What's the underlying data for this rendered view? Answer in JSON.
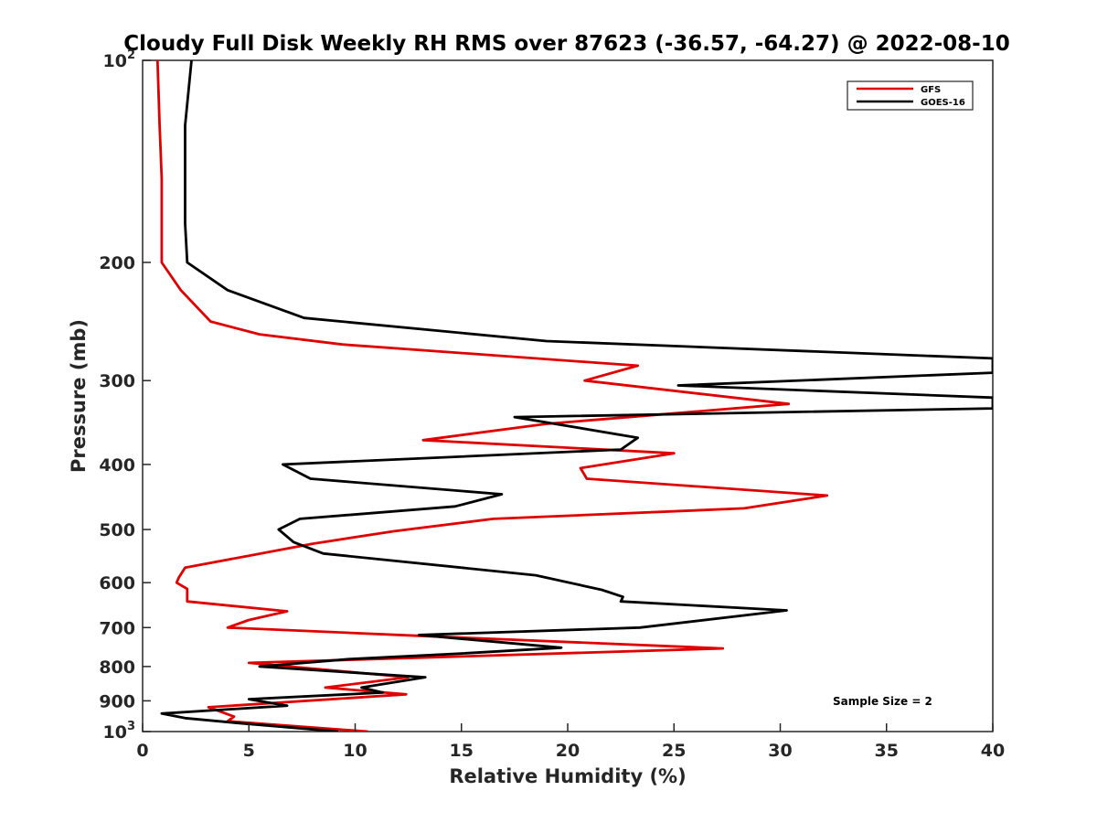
{
  "chart_data": {
    "type": "line",
    "title": "Cloudy Full Disk Weekly RH RMS over 87623 (-36.57, -64.27) @ 2022-08-10",
    "xlabel": "Relative Humidity (%)",
    "ylabel": "Pressure (mb)",
    "xlim": [
      0,
      40
    ],
    "ylim": [
      100,
      1000
    ],
    "yscale": "log",
    "y_reversed": true,
    "grid": false,
    "legend_position": "top-right",
    "xticks": [
      {
        "value": 0,
        "label": "0"
      },
      {
        "value": 5,
        "label": "5"
      },
      {
        "value": 10,
        "label": "10"
      },
      {
        "value": 15,
        "label": "15"
      },
      {
        "value": 20,
        "label": "20"
      },
      {
        "value": 25,
        "label": "25"
      },
      {
        "value": 30,
        "label": "30"
      },
      {
        "value": 35,
        "label": "35"
      },
      {
        "value": 40,
        "label": "40"
      }
    ],
    "yticks": [
      {
        "value": 100,
        "label": "10",
        "sup": "2"
      },
      {
        "value": 200,
        "label": "200",
        "sup": ""
      },
      {
        "value": 300,
        "label": "300",
        "sup": ""
      },
      {
        "value": 400,
        "label": "400",
        "sup": ""
      },
      {
        "value": 500,
        "label": "500",
        "sup": ""
      },
      {
        "value": 600,
        "label": "600",
        "sup": ""
      },
      {
        "value": 700,
        "label": "700",
        "sup": ""
      },
      {
        "value": 800,
        "label": "800",
        "sup": ""
      },
      {
        "value": 900,
        "label": "900",
        "sup": ""
      },
      {
        "value": 1000,
        "label": "10",
        "sup": "3"
      }
    ],
    "annotation": "Sample Size = 2",
    "series": [
      {
        "name": "GFS",
        "color": "#e00000",
        "points": [
          [
            0.7,
            100
          ],
          [
            0.8,
            125
          ],
          [
            0.9,
            150
          ],
          [
            0.9,
            175
          ],
          [
            0.9,
            200
          ],
          [
            1.8,
            220
          ],
          [
            3.2,
            245
          ],
          [
            5.5,
            256
          ],
          [
            9.4,
            265
          ],
          [
            23.3,
            285
          ],
          [
            20.8,
            300
          ],
          [
            30.4,
            325
          ],
          [
            19.0,
            348
          ],
          [
            13.2,
            368
          ],
          [
            25.0,
            385
          ],
          [
            20.6,
            405
          ],
          [
            20.9,
            420
          ],
          [
            32.2,
            445
          ],
          [
            28.3,
            465
          ],
          [
            16.5,
            482
          ],
          [
            11.8,
            503
          ],
          [
            8.0,
            525
          ],
          [
            5.0,
            547
          ],
          [
            2.0,
            570
          ],
          [
            1.7,
            590
          ],
          [
            1.6,
            600
          ],
          [
            2.1,
            613
          ],
          [
            2.1,
            628
          ],
          [
            2.1,
            640
          ],
          [
            6.8,
            662
          ],
          [
            5.0,
            682
          ],
          [
            4.0,
            700
          ],
          [
            13.0,
            720
          ],
          [
            27.3,
            752
          ],
          [
            5.0,
            790
          ],
          [
            12.5,
            830
          ],
          [
            8.6,
            860
          ],
          [
            12.4,
            880
          ],
          [
            3.1,
            920
          ],
          [
            4.3,
            950
          ],
          [
            4.0,
            965
          ],
          [
            10.6,
            1000
          ]
        ]
      },
      {
        "name": "GOES-16",
        "color": "#000000",
        "points": [
          [
            2.3,
            100
          ],
          [
            2.0,
            125
          ],
          [
            2.0,
            150
          ],
          [
            2.0,
            175
          ],
          [
            2.1,
            200
          ],
          [
            4.0,
            220
          ],
          [
            7.6,
            242
          ],
          [
            19.0,
            262
          ],
          [
            40,
            278
          ],
          [
            40,
            292
          ],
          [
            25.2,
            305
          ],
          [
            40,
            318
          ],
          [
            40,
            330
          ],
          [
            17.5,
            340
          ],
          [
            23.3,
            365
          ],
          [
            22.5,
            380
          ],
          [
            6.6,
            400
          ],
          [
            7.9,
            420
          ],
          [
            16.9,
            443
          ],
          [
            14.7,
            462
          ],
          [
            7.4,
            482
          ],
          [
            6.4,
            500
          ],
          [
            7.1,
            522
          ],
          [
            8.5,
            543
          ],
          [
            18.5,
            585
          ],
          [
            21.6,
            615
          ],
          [
            22.6,
            630
          ],
          [
            22.5,
            640
          ],
          [
            30.3,
            660
          ],
          [
            23.4,
            700
          ],
          [
            13.0,
            718
          ],
          [
            19.7,
            750
          ],
          [
            15.0,
            765
          ],
          [
            9.7,
            780
          ],
          [
            5.5,
            800
          ],
          [
            13.3,
            830
          ],
          [
            10.3,
            860
          ],
          [
            11.3,
            875
          ],
          [
            5.0,
            895
          ],
          [
            6.8,
            915
          ],
          [
            0.9,
            940
          ],
          [
            2.0,
            955
          ],
          [
            4.3,
            970
          ],
          [
            9.2,
            1000
          ]
        ]
      }
    ]
  }
}
